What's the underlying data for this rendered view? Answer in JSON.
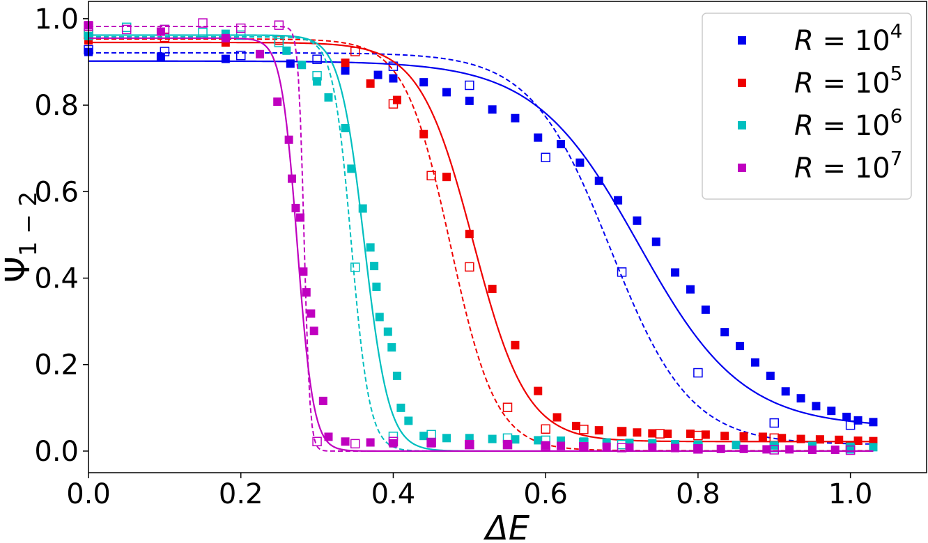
{
  "chart_data": {
    "type": "scatter",
    "xlabel": "ΔE",
    "ylabel": "Ψ",
    "ylabel_sub": "1 − 2",
    "xlim": [
      0.0,
      1.1
    ],
    "ylim": [
      -0.05,
      1.04
    ],
    "xticks": [
      0.0,
      0.2,
      0.4,
      0.6,
      0.8,
      1.0
    ],
    "xtick_labels": [
      "0.0",
      "0.2",
      "0.4",
      "0.6",
      "0.8",
      "1.0"
    ],
    "yticks": [
      0.0,
      0.2,
      0.4,
      0.6,
      0.8,
      1.0
    ],
    "ytick_labels": [
      "0.0",
      "0.2",
      "0.4",
      "0.6",
      "0.8",
      "1.0"
    ],
    "legend_position": "top-right",
    "series": [
      {
        "name": "R = 10^4",
        "legend_prefix": "R = 10",
        "legend_exp": "4",
        "color": "#0000ee",
        "filled": [
          [
            0.0,
            0.923
          ],
          [
            0.095,
            0.912
          ],
          [
            0.18,
            0.907
          ],
          [
            0.265,
            0.896
          ],
          [
            0.337,
            0.88
          ],
          [
            0.38,
            0.87
          ],
          [
            0.4,
            0.862
          ],
          [
            0.44,
            0.853
          ],
          [
            0.47,
            0.83
          ],
          [
            0.5,
            0.81
          ],
          [
            0.53,
            0.79
          ],
          [
            0.56,
            0.77
          ],
          [
            0.59,
            0.725
          ],
          [
            0.62,
            0.71
          ],
          [
            0.645,
            0.667
          ],
          [
            0.67,
            0.625
          ],
          [
            0.695,
            0.58
          ],
          [
            0.72,
            0.533
          ],
          [
            0.745,
            0.484
          ],
          [
            0.77,
            0.413
          ],
          [
            0.79,
            0.374
          ],
          [
            0.81,
            0.327
          ],
          [
            0.835,
            0.275
          ],
          [
            0.855,
            0.243
          ],
          [
            0.875,
            0.205
          ],
          [
            0.895,
            0.174
          ],
          [
            0.915,
            0.138
          ],
          [
            0.935,
            0.122
          ],
          [
            0.955,
            0.104
          ],
          [
            0.975,
            0.093
          ],
          [
            0.995,
            0.079
          ],
          [
            1.01,
            0.071
          ],
          [
            1.03,
            0.067
          ]
        ],
        "hollow": [
          [
            0.0,
            0.928
          ],
          [
            0.1,
            0.924
          ],
          [
            0.2,
            0.915
          ],
          [
            0.3,
            0.906
          ],
          [
            0.4,
            0.89
          ],
          [
            0.5,
            0.846
          ],
          [
            0.6,
            0.679
          ],
          [
            0.7,
            0.414
          ],
          [
            0.8,
            0.181
          ],
          [
            0.9,
            0.065
          ],
          [
            1.0,
            0.006
          ],
          [
            1.0,
            0.06
          ]
        ],
        "fit_solid": {
          "a": 0.902,
          "b": 0.055,
          "x0": 0.722,
          "w": 0.068
        },
        "fit_dashed": {
          "a": 0.921,
          "b": 0.015,
          "x0": 0.685,
          "w": 0.052
        }
      },
      {
        "name": "R = 10^5",
        "legend_prefix": "R = 10",
        "legend_exp": "5",
        "color": "#ee0000",
        "filled": [
          [
            0.0,
            0.95
          ],
          [
            0.18,
            0.945
          ],
          [
            0.337,
            0.898
          ],
          [
            0.37,
            0.85
          ],
          [
            0.405,
            0.812
          ],
          [
            0.44,
            0.733
          ],
          [
            0.47,
            0.634
          ],
          [
            0.5,
            0.502
          ],
          [
            0.53,
            0.375
          ],
          [
            0.56,
            0.245
          ],
          [
            0.59,
            0.139
          ],
          [
            0.615,
            0.078
          ],
          [
            0.64,
            0.058
          ],
          [
            0.67,
            0.048
          ],
          [
            0.7,
            0.045
          ],
          [
            0.72,
            0.043
          ],
          [
            0.74,
            0.041
          ],
          [
            0.76,
            0.04
          ],
          [
            0.79,
            0.04
          ],
          [
            0.81,
            0.038
          ],
          [
            0.835,
            0.035
          ],
          [
            0.86,
            0.034
          ],
          [
            0.885,
            0.033
          ],
          [
            0.91,
            0.03
          ],
          [
            0.935,
            0.028
          ],
          [
            0.96,
            0.027
          ],
          [
            0.985,
            0.026
          ],
          [
            1.01,
            0.024
          ],
          [
            1.03,
            0.023
          ]
        ],
        "hollow": [
          [
            0.0,
            0.963
          ],
          [
            0.1,
            0.957
          ],
          [
            0.25,
            0.95
          ],
          [
            0.35,
            0.924
          ],
          [
            0.4,
            0.803
          ],
          [
            0.45,
            0.637
          ],
          [
            0.5,
            0.426
          ],
          [
            0.55,
            0.101
          ],
          [
            0.6,
            0.051
          ],
          [
            0.65,
            0.05
          ],
          [
            0.7,
            0.045
          ],
          [
            0.75,
            0.04
          ],
          [
            0.8,
            0.036
          ],
          [
            0.9,
            0.03
          ],
          [
            1.0,
            0.01
          ]
        ],
        "fit_solid": {
          "a": 0.945,
          "b": 0.022,
          "x0": 0.505,
          "w": 0.035
        },
        "fit_dashed": {
          "a": 0.953,
          "b": 0.001,
          "x0": 0.475,
          "w": 0.03
        }
      },
      {
        "name": "R = 10^6",
        "legend_prefix": "R = 10",
        "legend_exp": "6",
        "color": "#00bfbf",
        "filled": [
          [
            0.0,
            0.96
          ],
          [
            0.18,
            0.965
          ],
          [
            0.26,
            0.926
          ],
          [
            0.28,
            0.893
          ],
          [
            0.3,
            0.855
          ],
          [
            0.315,
            0.818
          ],
          [
            0.337,
            0.747
          ],
          [
            0.345,
            0.653
          ],
          [
            0.36,
            0.561
          ],
          [
            0.37,
            0.471
          ],
          [
            0.375,
            0.428
          ],
          [
            0.378,
            0.38
          ],
          [
            0.382,
            0.31
          ],
          [
            0.393,
            0.276
          ],
          [
            0.398,
            0.24
          ],
          [
            0.405,
            0.174
          ],
          [
            0.41,
            0.1
          ],
          [
            0.42,
            0.07
          ],
          [
            0.44,
            0.035
          ],
          [
            0.47,
            0.03
          ],
          [
            0.5,
            0.03
          ],
          [
            0.53,
            0.028
          ],
          [
            0.56,
            0.027
          ],
          [
            0.59,
            0.025
          ],
          [
            0.62,
            0.024
          ],
          [
            0.65,
            0.022
          ],
          [
            0.68,
            0.02
          ],
          [
            0.71,
            0.019
          ],
          [
            0.74,
            0.018
          ],
          [
            0.77,
            0.016
          ],
          [
            0.8,
            0.015
          ],
          [
            0.85,
            0.014
          ],
          [
            0.9,
            0.013
          ],
          [
            0.95,
            0.012
          ],
          [
            1.0,
            0.01
          ],
          [
            1.03,
            0.009
          ]
        ],
        "hollow": [
          [
            0.0,
            0.968
          ],
          [
            0.05,
            0.98
          ],
          [
            0.1,
            0.975
          ],
          [
            0.15,
            0.968
          ],
          [
            0.2,
            0.962
          ],
          [
            0.25,
            0.945
          ],
          [
            0.3,
            0.868
          ],
          [
            0.35,
            0.425
          ],
          [
            0.4,
            0.034
          ],
          [
            0.45,
            0.038
          ],
          [
            0.55,
            0.03
          ],
          [
            0.6,
            0.025
          ],
          [
            0.65,
            0.02
          ],
          [
            0.7,
            0.015
          ],
          [
            0.8,
            0.01
          ],
          [
            0.9,
            0.008
          ],
          [
            1.0,
            0.005
          ]
        ],
        "fit_solid": {
          "a": 0.962,
          "b": 0.0,
          "x0": 0.362,
          "w": 0.016
        },
        "fit_dashed": {
          "a": 0.958,
          "b": 0.0,
          "x0": 0.345,
          "w": 0.012
        }
      },
      {
        "name": "R = 10^7",
        "legend_prefix": "R = 10",
        "legend_exp": "7",
        "color": "#bf00bf",
        "filled": [
          [
            0.0,
            0.985
          ],
          [
            0.095,
            0.97
          ],
          [
            0.18,
            0.955
          ],
          [
            0.225,
            0.918
          ],
          [
            0.248,
            0.808
          ],
          [
            0.263,
            0.72
          ],
          [
            0.267,
            0.63
          ],
          [
            0.272,
            0.562
          ],
          [
            0.278,
            0.54
          ],
          [
            0.282,
            0.415
          ],
          [
            0.286,
            0.367
          ],
          [
            0.292,
            0.318
          ],
          [
            0.296,
            0.278
          ],
          [
            0.308,
            0.116
          ],
          [
            0.315,
            0.033
          ],
          [
            0.337,
            0.022
          ],
          [
            0.37,
            0.02
          ],
          [
            0.4,
            0.018
          ],
          [
            0.45,
            0.018
          ],
          [
            0.5,
            0.016
          ],
          [
            0.55,
            0.015
          ],
          [
            0.6,
            0.013
          ],
          [
            0.62,
            0.012
          ],
          [
            0.65,
            0.011
          ],
          [
            0.68,
            0.01
          ],
          [
            0.71,
            0.008
          ],
          [
            0.74,
            0.008
          ],
          [
            0.77,
            0.007
          ],
          [
            0.8,
            0.006
          ],
          [
            0.83,
            0.005
          ],
          [
            0.86,
            0.005
          ],
          [
            0.89,
            0.004
          ],
          [
            0.92,
            0.004
          ],
          [
            0.95,
            0.003
          ],
          [
            0.98,
            0.003
          ]
        ],
        "hollow": [
          [
            0.0,
            0.983
          ],
          [
            0.05,
            0.975
          ],
          [
            0.1,
            0.975
          ],
          [
            0.15,
            0.99
          ],
          [
            0.2,
            0.978
          ],
          [
            0.25,
            0.985
          ],
          [
            0.3,
            0.022
          ],
          [
            0.35,
            0.017
          ],
          [
            0.4,
            0.022
          ],
          [
            0.45,
            0.02
          ],
          [
            0.5,
            0.015
          ],
          [
            0.55,
            0.015
          ],
          [
            0.6,
            0.012
          ],
          [
            0.65,
            0.01
          ],
          [
            0.7,
            0.008
          ],
          [
            0.8,
            0.005
          ],
          [
            0.9,
            0.003
          ],
          [
            1.0,
            0.002
          ]
        ],
        "fit_solid": {
          "a": 0.955,
          "b": 0.0,
          "x0": 0.274,
          "w": 0.0105
        },
        "fit_dashed": {
          "a": 0.982,
          "b": 0.0,
          "x0": 0.283,
          "w": 0.0038
        }
      }
    ]
  }
}
